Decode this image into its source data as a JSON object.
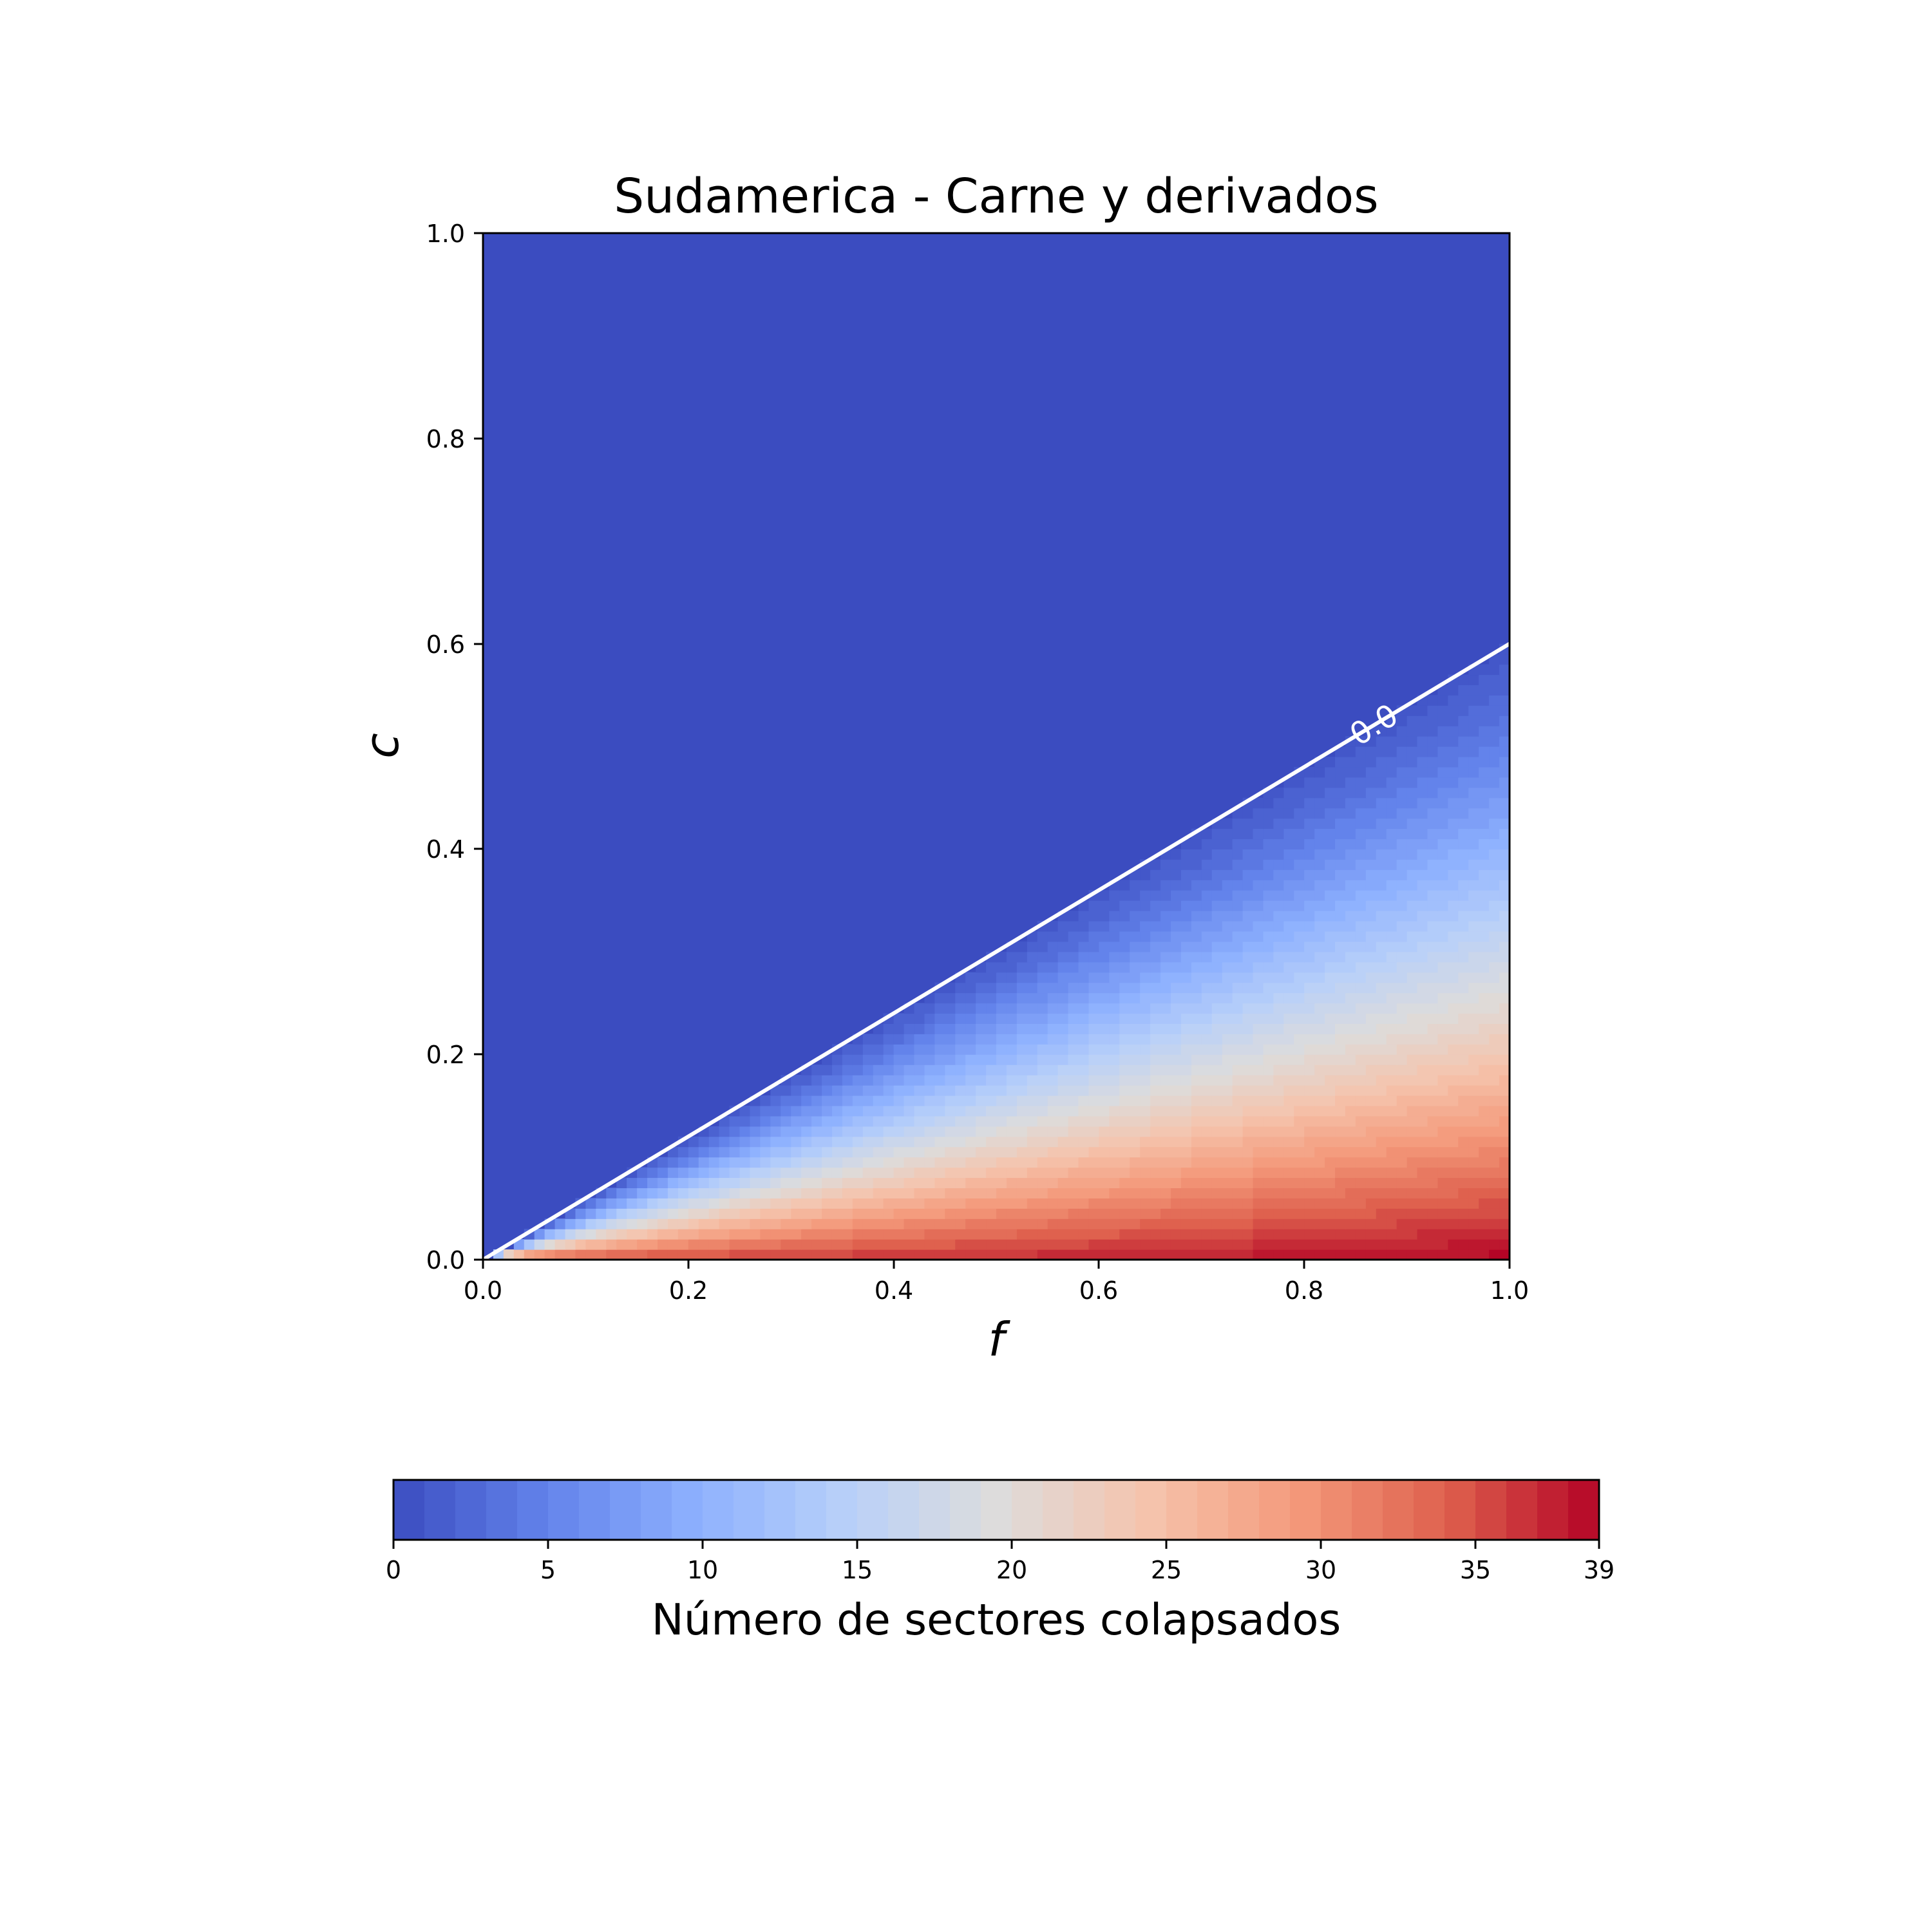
{
  "chart_data": {
    "type": "heatmap",
    "title": "Sudamerica - Carne y derivados",
    "xlabel": "f",
    "ylabel": "c",
    "xlim": [
      0.0,
      1.0
    ],
    "ylim": [
      0.0,
      1.0
    ],
    "x_ticks": [
      "0.0",
      "0.2",
      "0.4",
      "0.6",
      "0.8",
      "1.0"
    ],
    "y_ticks": [
      "0.0",
      "0.2",
      "0.4",
      "0.6",
      "0.8",
      "1.0"
    ],
    "colormap": "coolwarm",
    "color_low": "#3b4cc0",
    "color_high": "#b40426",
    "colorbar": {
      "label": "Número de sectores colapsados",
      "orientation": "horizontal",
      "placement": "bottom",
      "min": 0,
      "max": 39,
      "ticks": [
        "0",
        "5",
        "10",
        "15",
        "20",
        "25",
        "30",
        "35",
        "39"
      ]
    },
    "contour": {
      "level_label": "0.0",
      "color": "#ffffff",
      "boundary_points": [
        [
          0.0,
          0.0
        ],
        [
          1.0,
          0.6
        ]
      ]
    },
    "regions": [
      {
        "description_value": 0,
        "area": "c above 0.6·f"
      },
      {
        "max_value": 39,
        "area": "c near 0, f near 1"
      }
    ]
  }
}
